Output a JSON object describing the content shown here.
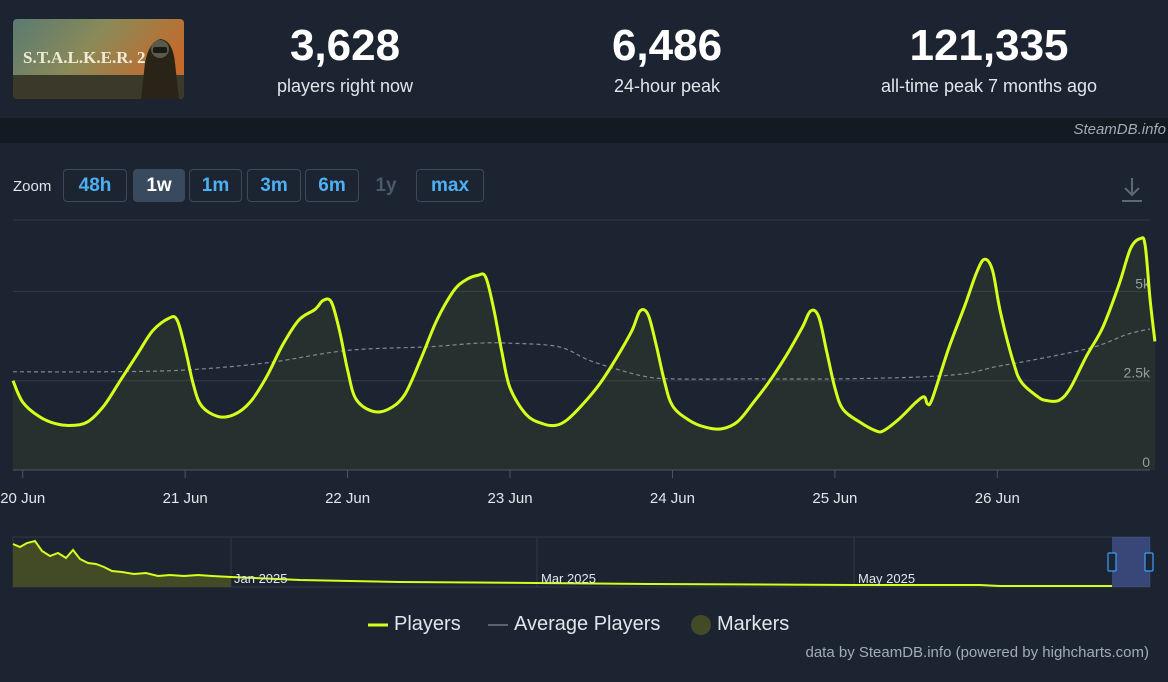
{
  "stats": [
    {
      "value": "3,628",
      "label": "players right now"
    },
    {
      "value": "6,486",
      "label": "24-hour peak"
    },
    {
      "value": "121,335",
      "label": "all-time peak 7 months ago"
    }
  ],
  "game": {
    "logo_text": "S.T.A.L.K.E.R. 2"
  },
  "credit_top": "SteamDB.info",
  "zoom": {
    "label": "Zoom",
    "buttons": [
      "48h",
      "1w",
      "1m",
      "3m",
      "6m",
      "1y",
      "max"
    ],
    "active": "1w",
    "disabled": [
      "1y"
    ]
  },
  "colors": {
    "players": "#d7ff1c",
    "average": "#7f8a94",
    "markers": "#434b26"
  },
  "legend": {
    "players": "Players",
    "average": "Average Players",
    "markers": "Markers"
  },
  "credit_bottom": "data by SteamDB.info (powered by highcharts.com)",
  "navigator": {
    "labels": [
      "Jan 2025",
      "Mar 2025",
      "May 2025"
    ]
  },
  "chart_data": {
    "type": "line",
    "x_ticks": [
      "20 Jun",
      "21 Jun",
      "22 Jun",
      "23 Jun",
      "24 Jun",
      "25 Jun",
      "26 Jun"
    ],
    "y_ticks": [
      "0",
      "2.5k",
      "5k"
    ],
    "ylim": [
      0,
      7000
    ],
    "x_range_days": [
      -0.06,
      6.94
    ],
    "series": [
      {
        "name": "Players",
        "points": [
          [
            -0.06,
            2500
          ],
          [
            0.0,
            1900
          ],
          [
            0.1,
            1500
          ],
          [
            0.2,
            1300
          ],
          [
            0.3,
            1250
          ],
          [
            0.4,
            1350
          ],
          [
            0.5,
            1800
          ],
          [
            0.6,
            2500
          ],
          [
            0.7,
            3200
          ],
          [
            0.8,
            3900
          ],
          [
            0.9,
            4250
          ],
          [
            0.95,
            4200
          ],
          [
            1.0,
            3400
          ],
          [
            1.05,
            2400
          ],
          [
            1.1,
            1800
          ],
          [
            1.2,
            1500
          ],
          [
            1.3,
            1550
          ],
          [
            1.4,
            1900
          ],
          [
            1.5,
            2600
          ],
          [
            1.6,
            3500
          ],
          [
            1.7,
            4200
          ],
          [
            1.8,
            4500
          ],
          [
            1.85,
            4750
          ],
          [
            1.9,
            4700
          ],
          [
            1.95,
            3900
          ],
          [
            2.0,
            2800
          ],
          [
            2.05,
            2000
          ],
          [
            2.15,
            1650
          ],
          [
            2.25,
            1700
          ],
          [
            2.35,
            2100
          ],
          [
            2.45,
            3100
          ],
          [
            2.55,
            4200
          ],
          [
            2.65,
            5000
          ],
          [
            2.72,
            5300
          ],
          [
            2.8,
            5450
          ],
          [
            2.85,
            5400
          ],
          [
            2.9,
            4500
          ],
          [
            2.95,
            3300
          ],
          [
            3.0,
            2300
          ],
          [
            3.1,
            1550
          ],
          [
            3.2,
            1300
          ],
          [
            3.28,
            1250
          ],
          [
            3.35,
            1400
          ],
          [
            3.45,
            1850
          ],
          [
            3.55,
            2400
          ],
          [
            3.65,
            3100
          ],
          [
            3.75,
            3900
          ],
          [
            3.8,
            4450
          ],
          [
            3.85,
            4350
          ],
          [
            3.9,
            3500
          ],
          [
            3.95,
            2500
          ],
          [
            4.0,
            1800
          ],
          [
            4.1,
            1400
          ],
          [
            4.2,
            1200
          ],
          [
            4.3,
            1150
          ],
          [
            4.4,
            1350
          ],
          [
            4.5,
            1900
          ],
          [
            4.6,
            2500
          ],
          [
            4.7,
            3200
          ],
          [
            4.8,
            4000
          ],
          [
            4.85,
            4450
          ],
          [
            4.9,
            4300
          ],
          [
            4.95,
            3300
          ],
          [
            5.0,
            2300
          ],
          [
            5.05,
            1700
          ],
          [
            5.15,
            1350
          ],
          [
            5.25,
            1100
          ],
          [
            5.3,
            1100
          ],
          [
            5.4,
            1450
          ],
          [
            5.5,
            1900
          ],
          [
            5.55,
            2050
          ],
          [
            5.57,
            1850
          ],
          [
            5.6,
            2000
          ],
          [
            5.7,
            3400
          ],
          [
            5.8,
            4600
          ],
          [
            5.87,
            5500
          ],
          [
            5.92,
            5900
          ],
          [
            5.97,
            5600
          ],
          [
            6.02,
            4400
          ],
          [
            6.1,
            3000
          ],
          [
            6.15,
            2450
          ],
          [
            6.25,
            2050
          ],
          [
            6.3,
            1950
          ],
          [
            6.38,
            1950
          ],
          [
            6.45,
            2300
          ],
          [
            6.55,
            3200
          ],
          [
            6.65,
            4000
          ],
          [
            6.75,
            5200
          ],
          [
            6.82,
            6200
          ],
          [
            6.88,
            6480
          ],
          [
            6.91,
            6300
          ],
          [
            6.94,
            4800
          ],
          [
            6.97,
            3600
          ]
        ]
      },
      {
        "name": "Average Players",
        "points": [
          [
            -0.06,
            2750
          ],
          [
            0.5,
            2750
          ],
          [
            1.0,
            2800
          ],
          [
            1.5,
            3000
          ],
          [
            2.0,
            3350
          ],
          [
            2.5,
            3450
          ],
          [
            2.8,
            3550
          ],
          [
            3.0,
            3550
          ],
          [
            3.3,
            3450
          ],
          [
            3.5,
            3050
          ],
          [
            3.8,
            2650
          ],
          [
            4.0,
            2550
          ],
          [
            4.5,
            2550
          ],
          [
            5.0,
            2550
          ],
          [
            5.5,
            2600
          ],
          [
            5.8,
            2700
          ],
          [
            6.0,
            2900
          ],
          [
            6.3,
            3150
          ],
          [
            6.6,
            3450
          ],
          [
            6.8,
            3800
          ],
          [
            6.94,
            3950
          ]
        ]
      }
    ]
  }
}
